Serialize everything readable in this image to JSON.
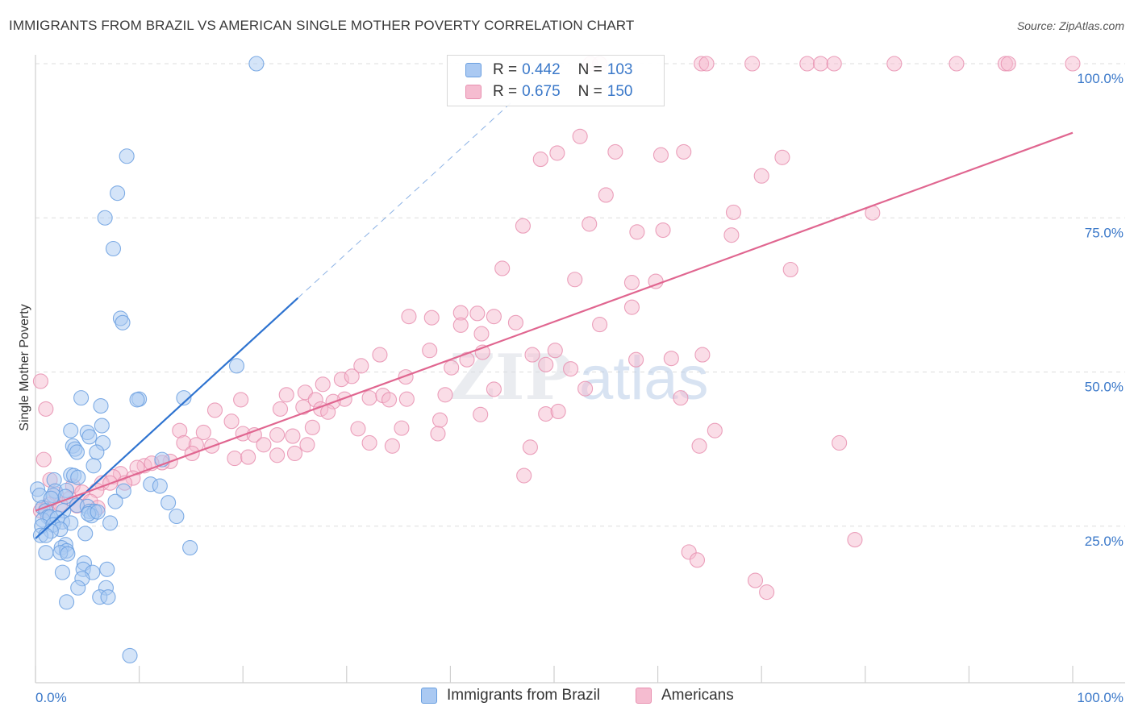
{
  "title": "IMMIGRANTS FROM BRAZIL VS AMERICAN SINGLE MOTHER POVERTY CORRELATION CHART",
  "source": "Source: ZipAtlas.com",
  "stats": [
    {
      "r_label": "R = ",
      "r_value": "0.442",
      "n_label": "N = ",
      "n_value": "103"
    },
    {
      "r_label": "R = ",
      "r_value": "0.675",
      "n_label": "N = ",
      "n_value": "150"
    }
  ],
  "colors": {
    "brazil_fill": "#aac9f2",
    "brazil_stroke": "#6a9fe0",
    "brazil_line": "#2e73d0",
    "americans_fill": "#f5bcd0",
    "americans_stroke": "#e890b0",
    "americans_line": "#e06690",
    "tick_label": "#3a78c9",
    "grid": "#dddddd"
  },
  "chart_data": {
    "type": "scatter",
    "xlabel": "",
    "ylabel": "Single Mother Poverty",
    "xlim": [
      0,
      100
    ],
    "ylim": [
      0,
      100
    ],
    "x_tick_labels": [
      {
        "v": 0,
        "t": "0.0%"
      },
      {
        "v": 100,
        "t": "100.0%"
      }
    ],
    "y_tick_labels": [
      {
        "v": 25,
        "t": "25.0%"
      },
      {
        "v": 50,
        "t": "50.0%"
      },
      {
        "v": 75,
        "t": "75.0%"
      },
      {
        "v": 100,
        "t": "100.0%"
      }
    ],
    "grid": true,
    "legend_position": "bottom",
    "watermark": {
      "zip": "ZIP",
      "atlas": "atlas"
    },
    "series": [
      {
        "name": "Immigrants from Brazil",
        "r": 0.442,
        "n": 103,
        "trend": {
          "x0": 0,
          "y0": 23.0,
          "x1": 25.3,
          "y1": 62.0,
          "dash_to_x": 45.8
        },
        "points": [
          [
            21.3,
            100
          ],
          [
            8.8,
            85
          ],
          [
            7.9,
            79
          ],
          [
            6.7,
            75
          ],
          [
            7.5,
            70
          ],
          [
            8.2,
            58.7
          ],
          [
            8.4,
            58
          ],
          [
            19.4,
            51
          ],
          [
            10.0,
            45.6
          ],
          [
            14.3,
            45.8
          ],
          [
            4.4,
            45.8
          ],
          [
            9.8,
            45.5
          ],
          [
            6.3,
            44.5
          ],
          [
            3.4,
            40.5
          ],
          [
            5.0,
            40.2
          ],
          [
            5.2,
            39.5
          ],
          [
            6.4,
            41.3
          ],
          [
            3.6,
            38.0
          ],
          [
            3.8,
            37.5
          ],
          [
            6.5,
            38.5
          ],
          [
            4.0,
            37.0
          ],
          [
            5.9,
            37.0
          ],
          [
            12.2,
            35.8
          ],
          [
            5.6,
            34.8
          ],
          [
            3.4,
            33.3
          ],
          [
            3.7,
            33.2
          ],
          [
            1.8,
            32.5
          ],
          [
            4.1,
            32.9
          ],
          [
            11.1,
            31.8
          ],
          [
            12.0,
            31.5
          ],
          [
            1.9,
            30.7
          ],
          [
            3.0,
            30.8
          ],
          [
            8.5,
            30.7
          ],
          [
            1.7,
            30.0
          ],
          [
            2.9,
            29.8
          ],
          [
            0.2,
            31.0
          ],
          [
            0.4,
            30.0
          ],
          [
            7.7,
            29.0
          ],
          [
            12.8,
            28.8
          ],
          [
            0.7,
            28.0
          ],
          [
            1.0,
            27.5
          ],
          [
            2.7,
            27.5
          ],
          [
            4.0,
            28.4
          ],
          [
            5.0,
            28.2
          ],
          [
            5.2,
            27.4
          ],
          [
            5.7,
            27.4
          ],
          [
            5.4,
            26.7
          ],
          [
            1.2,
            26.5
          ],
          [
            0.7,
            26.0
          ],
          [
            1.4,
            26.5
          ],
          [
            2.1,
            26.3
          ],
          [
            13.6,
            26.6
          ],
          [
            2.6,
            25.7
          ],
          [
            3.4,
            25.5
          ],
          [
            7.2,
            25.5
          ],
          [
            0.6,
            25.0
          ],
          [
            1.7,
            25.2
          ],
          [
            2.4,
            24.5
          ],
          [
            1.5,
            24.2
          ],
          [
            4.8,
            23.8
          ],
          [
            0.5,
            23.5
          ],
          [
            1.0,
            23.5
          ],
          [
            2.9,
            22.0
          ],
          [
            2.5,
            21.5
          ],
          [
            3.0,
            21.0
          ],
          [
            14.9,
            21.5
          ],
          [
            2.4,
            20.7
          ],
          [
            1.0,
            20.7
          ],
          [
            3.1,
            20.5
          ],
          [
            4.7,
            19.0
          ],
          [
            4.6,
            18.0
          ],
          [
            6.9,
            18.0
          ],
          [
            5.5,
            17.5
          ],
          [
            2.6,
            17.5
          ],
          [
            4.5,
            16.5
          ],
          [
            4.1,
            15.0
          ],
          [
            6.8,
            15.0
          ],
          [
            6.2,
            13.5
          ],
          [
            7.0,
            13.5
          ],
          [
            3.0,
            12.7
          ],
          [
            9.1,
            4.0
          ],
          [
            5.1,
            27.0
          ],
          [
            6.0,
            27.3
          ],
          [
            1.5,
            29.5
          ]
        ]
      },
      {
        "name": "Americans",
        "r": 0.675,
        "n": 150,
        "trend": {
          "x0": 0,
          "y0": 27.5,
          "x1": 100,
          "y1": 88.8
        },
        "points": [
          [
            53.5,
            100
          ],
          [
            54.4,
            100
          ],
          [
            64.2,
            100
          ],
          [
            64.7,
            100
          ],
          [
            69.1,
            100
          ],
          [
            74.4,
            100
          ],
          [
            75.7,
            100
          ],
          [
            77.0,
            100
          ],
          [
            82.8,
            100
          ],
          [
            88.8,
            100
          ],
          [
            93.5,
            100
          ],
          [
            93.8,
            100
          ],
          [
            100,
            100
          ],
          [
            52.5,
            88.2
          ],
          [
            50.3,
            85.5
          ],
          [
            48.7,
            84.5
          ],
          [
            55.9,
            85.7
          ],
          [
            60.3,
            85.2
          ],
          [
            62.5,
            85.7
          ],
          [
            72.0,
            84.8
          ],
          [
            70.0,
            81.8
          ],
          [
            55.0,
            78.7
          ],
          [
            67.3,
            75.9
          ],
          [
            80.7,
            75.8
          ],
          [
            47.0,
            73.7
          ],
          [
            53.4,
            74.0
          ],
          [
            58.0,
            72.7
          ],
          [
            60.5,
            73.0
          ],
          [
            67.1,
            72.2
          ],
          [
            45.0,
            66.8
          ],
          [
            52.0,
            65.0
          ],
          [
            57.5,
            64.5
          ],
          [
            59.8,
            64.7
          ],
          [
            72.8,
            66.6
          ],
          [
            57.5,
            60.5
          ],
          [
            36.0,
            59.0
          ],
          [
            38.2,
            58.8
          ],
          [
            41.0,
            59.6
          ],
          [
            42.6,
            59.5
          ],
          [
            44.2,
            59.0
          ],
          [
            41.0,
            57.6
          ],
          [
            43.0,
            56.2
          ],
          [
            46.3,
            58.0
          ],
          [
            54.4,
            57.7
          ],
          [
            38.0,
            53.5
          ],
          [
            43.1,
            53.2
          ],
          [
            33.2,
            52.8
          ],
          [
            47.9,
            52.8
          ],
          [
            50.1,
            53.5
          ],
          [
            57.9,
            52.0
          ],
          [
            61.3,
            52.2
          ],
          [
            64.3,
            52.8
          ],
          [
            49.2,
            51.2
          ],
          [
            41.6,
            52.0
          ],
          [
            40.1,
            50.7
          ],
          [
            51.6,
            50.5
          ],
          [
            31.4,
            51.0
          ],
          [
            35.7,
            49.2
          ],
          [
            29.5,
            48.8
          ],
          [
            30.5,
            49.3
          ],
          [
            27.7,
            48.0
          ],
          [
            29.8,
            45.6
          ],
          [
            32.2,
            45.8
          ],
          [
            33.5,
            46.2
          ],
          [
            34.1,
            45.5
          ],
          [
            35.8,
            45.6
          ],
          [
            39.5,
            46.3
          ],
          [
            24.2,
            46.3
          ],
          [
            26.0,
            46.7
          ],
          [
            27.0,
            45.5
          ],
          [
            28.7,
            45.2
          ],
          [
            44.2,
            47.2
          ],
          [
            53.0,
            47.3
          ],
          [
            62.2,
            45.8
          ],
          [
            19.8,
            45.5
          ],
          [
            17.3,
            43.8
          ],
          [
            23.6,
            44.0
          ],
          [
            25.8,
            44.3
          ],
          [
            27.5,
            44.0
          ],
          [
            39.0,
            42.2
          ],
          [
            42.9,
            43.1
          ],
          [
            49.2,
            43.2
          ],
          [
            50.4,
            43.6
          ],
          [
            18.9,
            42.0
          ],
          [
            26.7,
            41.0
          ],
          [
            28.2,
            43.5
          ],
          [
            31.1,
            40.8
          ],
          [
            35.3,
            40.9
          ],
          [
            38.8,
            40.0
          ],
          [
            65.5,
            40.5
          ],
          [
            13.9,
            40.5
          ],
          [
            16.2,
            40.2
          ],
          [
            20.0,
            40.0
          ],
          [
            21.1,
            39.8
          ],
          [
            23.3,
            39.8
          ],
          [
            24.8,
            39.6
          ],
          [
            14.3,
            38.5
          ],
          [
            15.5,
            38.2
          ],
          [
            17.0,
            38.0
          ],
          [
            22.0,
            38.2
          ],
          [
            26.2,
            38.2
          ],
          [
            32.2,
            38.5
          ],
          [
            34.4,
            38.0
          ],
          [
            47.7,
            37.8
          ],
          [
            64.0,
            38.0
          ],
          [
            77.5,
            38.5
          ],
          [
            19.2,
            36.0
          ],
          [
            20.5,
            36.2
          ],
          [
            23.3,
            36.5
          ],
          [
            25.0,
            36.8
          ],
          [
            15.1,
            36.8
          ],
          [
            13.0,
            35.5
          ],
          [
            12.2,
            35.3
          ],
          [
            10.5,
            34.8
          ],
          [
            11.2,
            35.2
          ],
          [
            9.8,
            34.5
          ],
          [
            8.2,
            33.5
          ],
          [
            7.5,
            33.0
          ],
          [
            9.4,
            32.8
          ],
          [
            6.4,
            32.0
          ],
          [
            7.2,
            32.0
          ],
          [
            8.6,
            32.0
          ],
          [
            47.1,
            33.2
          ],
          [
            1.4,
            32.5
          ],
          [
            3.6,
            31.5
          ],
          [
            5.9,
            30.8
          ],
          [
            4.5,
            30.5
          ],
          [
            2.0,
            30.2
          ],
          [
            3.3,
            29.5
          ],
          [
            5.3,
            29.0
          ],
          [
            1.3,
            28.5
          ],
          [
            4.0,
            28.3
          ],
          [
            2.4,
            28.5
          ],
          [
            6.0,
            28.0
          ],
          [
            1.0,
            27.8
          ],
          [
            0.5,
            27.5
          ],
          [
            0.8,
            35.8
          ],
          [
            0.5,
            48.5
          ],
          [
            1.0,
            44.0
          ],
          [
            63.0,
            20.8
          ],
          [
            63.8,
            19.5
          ],
          [
            69.4,
            16.2
          ],
          [
            70.5,
            14.3
          ],
          [
            79.0,
            22.8
          ]
        ]
      }
    ]
  }
}
